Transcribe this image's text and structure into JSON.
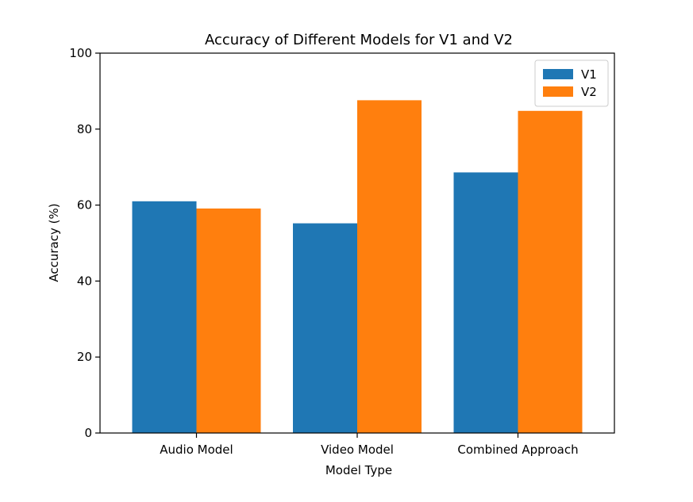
{
  "chart_data": {
    "type": "bar",
    "title": "Accuracy of Different Models for V1 and V2",
    "xlabel": "Model Type",
    "ylabel": "Accuracy (%)",
    "categories": [
      "Audio Model",
      "Video Model",
      "Combined Approach"
    ],
    "series": [
      {
        "name": "V1",
        "color": "#1f77b4",
        "values": [
          61.0,
          55.2,
          68.6
        ]
      },
      {
        "name": "V2",
        "color": "#ff7f0e",
        "values": [
          59.1,
          87.6,
          84.8
        ]
      }
    ],
    "ylim": [
      0,
      100
    ],
    "yticks": [
      0,
      20,
      40,
      60,
      80,
      100
    ],
    "legend_position": "top-right",
    "grid": false
  }
}
